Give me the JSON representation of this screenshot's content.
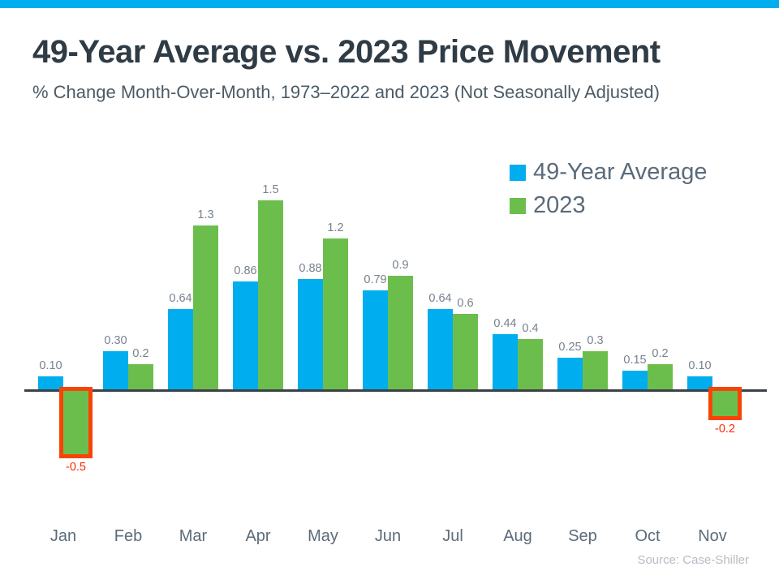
{
  "page": {
    "background_color": "#ffffff",
    "top_band_color": "#00ADEE"
  },
  "header": {
    "title": "49-Year Average vs. 2023 Price Movement",
    "subtitle": "% Change Month-Over-Month, 1973–2022 and 2023 (Not Seasonally Adjusted)"
  },
  "legend": {
    "items": [
      {
        "label": "49-Year Average",
        "color": "#00ADEE"
      },
      {
        "label": "2023",
        "color": "#6CBE4C"
      }
    ]
  },
  "footer": {
    "source": "Source: Case-Shiller"
  },
  "chart_data": {
    "type": "bar",
    "title": "49-Year Average vs. 2023 Price Movement",
    "xlabel": "",
    "ylabel": "% Change Month-Over-Month",
    "categories": [
      "Jan",
      "Feb",
      "Mar",
      "Apr",
      "May",
      "Jun",
      "Jul",
      "Aug",
      "Sep",
      "Oct",
      "Nov"
    ],
    "series": [
      {
        "name": "49-Year Average",
        "color": "#00ADEE",
        "values": [
          0.1,
          0.3,
          0.64,
          0.86,
          0.88,
          0.79,
          0.64,
          0.44,
          0.25,
          0.15,
          0.1
        ],
        "labels": [
          "0.10",
          "0.30",
          "0.64",
          "0.86",
          "0.88",
          "0.79",
          "0.64",
          "0.44",
          "0.25",
          "0.15",
          "0.10"
        ]
      },
      {
        "name": "2023",
        "color": "#6CBE4C",
        "values": [
          -0.5,
          0.2,
          1.3,
          1.5,
          1.2,
          0.9,
          0.6,
          0.4,
          0.3,
          0.2,
          -0.2
        ],
        "labels": [
          "-0.5",
          "0.2",
          "1.3",
          "1.5",
          "1.2",
          "0.9",
          "0.6",
          "0.4",
          "0.3",
          "0.2",
          "-0.2"
        ]
      }
    ],
    "ylim": [
      -0.6,
      1.6
    ],
    "grid": false,
    "legend_position": "top-right",
    "axis_color": "#3A4148",
    "label_color": "#76828E",
    "negative_highlight": {
      "outline_color": "#F94306",
      "label_color": "#FB2B06"
    }
  }
}
